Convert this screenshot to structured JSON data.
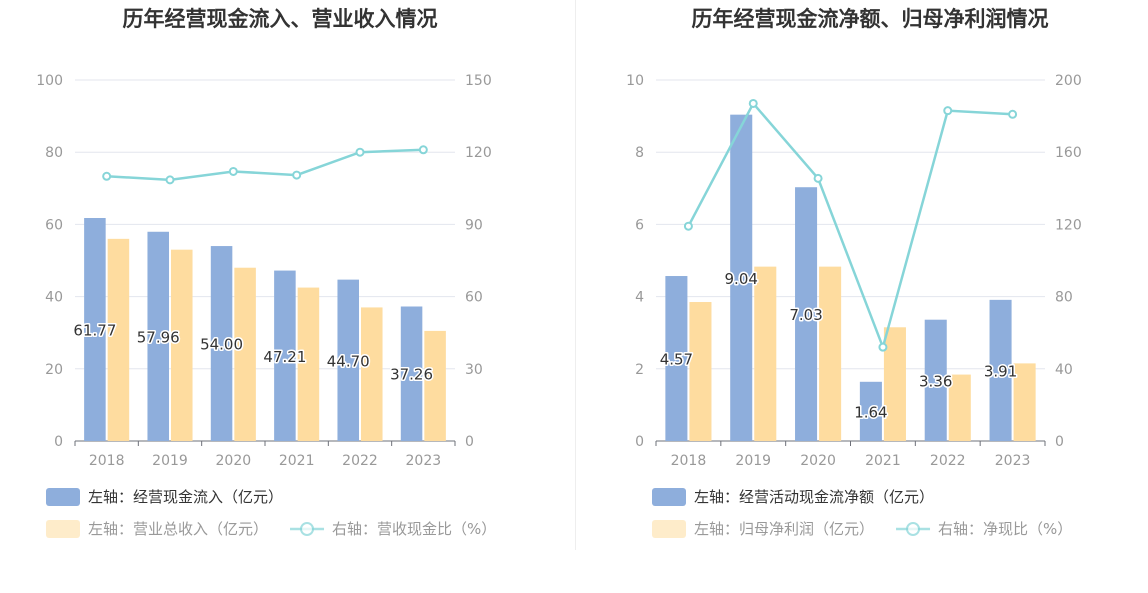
{
  "chart_data": [
    {
      "type": "bar",
      "title": "历年经营现金流入、营业收入情况",
      "categories": [
        "2018",
        "2019",
        "2020",
        "2021",
        "2022",
        "2023"
      ],
      "left_axis": {
        "min": 0,
        "max": 100,
        "ticks": [
          "0",
          "20",
          "40",
          "60",
          "80",
          "100"
        ]
      },
      "right_axis": {
        "min": 0,
        "max": 150,
        "ticks": [
          "0",
          "30",
          "60",
          "90",
          "120",
          "150"
        ]
      },
      "series": [
        {
          "name": "左轴：经营现金流入（亿元）",
          "type": "bar",
          "axis": "left",
          "color": "#8eaedc",
          "values": [
            61.77,
            57.96,
            54.0,
            47.21,
            44.7,
            37.26
          ],
          "labels": [
            "61.77",
            "57.96",
            "54.00",
            "47.21",
            "44.70",
            "37.26"
          ]
        },
        {
          "name": "左轴：营业总收入（亿元）",
          "type": "bar",
          "axis": "left",
          "color": "#fedc9f",
          "values": [
            56.0,
            53.0,
            48.0,
            42.5,
            37.0,
            30.5
          ]
        },
        {
          "name": "右轴：营收现金比（%）",
          "type": "line",
          "axis": "right",
          "color": "#86d5d8",
          "values": [
            110.0,
            108.5,
            112.0,
            110.5,
            120.0,
            121.0
          ]
        }
      ],
      "legend_placement": "bottom-left",
      "grid": true
    },
    {
      "type": "bar",
      "title": "历年经营现金流净额、归母净利润情况",
      "categories": [
        "2018",
        "2019",
        "2020",
        "2021",
        "2022",
        "2023"
      ],
      "left_axis": {
        "min": 0,
        "max": 10,
        "ticks": [
          "0",
          "2",
          "4",
          "6",
          "8",
          "10"
        ]
      },
      "right_axis": {
        "min": 0,
        "max": 200,
        "ticks": [
          "0",
          "40",
          "80",
          "120",
          "160",
          "200"
        ]
      },
      "series": [
        {
          "name": "左轴：经营活动现金流净额（亿元）",
          "type": "bar",
          "axis": "left",
          "color": "#8eaedc",
          "values": [
            4.57,
            9.04,
            7.03,
            1.64,
            3.36,
            3.91
          ],
          "labels": [
            "4.57",
            "9.04",
            "7.03",
            "1.64",
            "3.36",
            "3.91"
          ]
        },
        {
          "name": "左轴：归母净利润（亿元）",
          "type": "bar",
          "axis": "left",
          "color": "#fedc9f",
          "values": [
            3.85,
            4.83,
            4.83,
            3.15,
            1.84,
            2.15
          ]
        },
        {
          "name": "右轴：净现比（%）",
          "type": "line",
          "axis": "right",
          "color": "#86d5d8",
          "values": [
            119.0,
            187.0,
            145.5,
            52.0,
            183.0,
            181.0
          ]
        }
      ],
      "legend_placement": "bottom-left",
      "grid": true
    }
  ]
}
